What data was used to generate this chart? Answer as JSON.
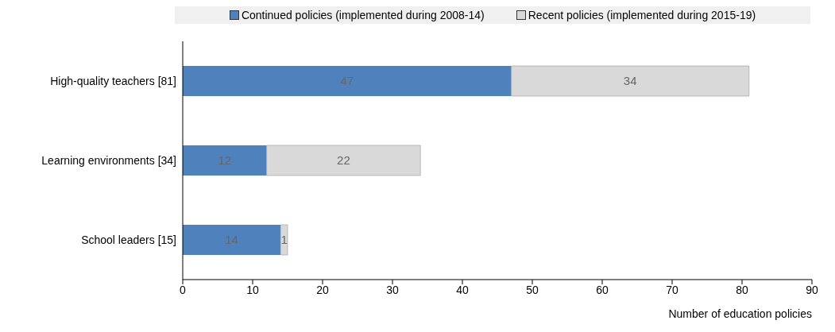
{
  "chart_data": {
    "type": "bar",
    "orientation": "horizontal",
    "stacked": true,
    "xlabel": "Number of education policies",
    "categories": [
      "High-quality teachers [81]",
      "Learning environments [34]",
      "School leaders [15]"
    ],
    "series": [
      {
        "name": "Continued policies (implemented during 2008-14)",
        "color": "#4f81bd",
        "values": [
          47,
          12,
          14
        ]
      },
      {
        "name": "Recent policies (implemented during 2015-19)",
        "color": "#d9d9d9",
        "values": [
          34,
          22,
          1
        ]
      }
    ],
    "xlim": [
      0,
      90
    ],
    "xticks": [
      0,
      10,
      20,
      30,
      40,
      50,
      60,
      70,
      80,
      90
    ],
    "data_labels": true,
    "grid": false,
    "legend": "top"
  }
}
